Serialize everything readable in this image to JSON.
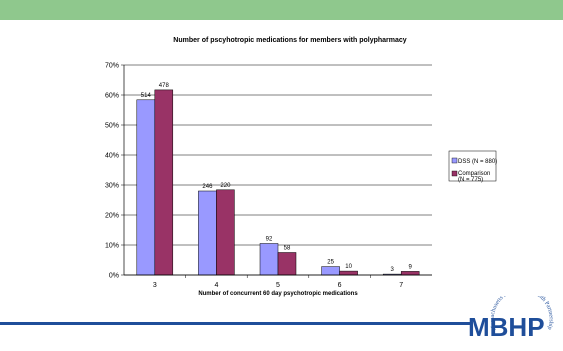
{
  "chart_data": {
    "type": "bar",
    "title": "Number of pscyhotropic medications for members with polypharmacy",
    "xlabel": "Number of concurrent 60 day psychotropic medications",
    "ylabel": "",
    "categories": [
      "3",
      "4",
      "5",
      "6",
      "7"
    ],
    "ylim": [
      0,
      70
    ],
    "yticks": [
      "0%",
      "10%",
      "20%",
      "30%",
      "40%",
      "50%",
      "60%",
      "70%"
    ],
    "grid": true,
    "legend_position": "right",
    "series": [
      {
        "name": "DSS (N = 880)",
        "color": "#9999ff",
        "values": [
          58.4,
          28.0,
          10.5,
          2.8,
          0.3
        ],
        "labels": [
          "514",
          "246",
          "92",
          "25",
          "3"
        ]
      },
      {
        "name": "Comparison (N = 775)",
        "color": "#993366",
        "values": [
          61.7,
          28.4,
          7.5,
          1.3,
          1.2
        ],
        "labels": [
          "478",
          "220",
          "58",
          "10",
          "9"
        ]
      }
    ]
  },
  "logo": {
    "text": "MBHP",
    "arc_text": "Massachusetts Behavioral Health Partnership",
    "color": "#1f4e9a"
  },
  "theme": {
    "top_bar_color": "#8fc88d",
    "footer_line_color": "#1f4e9a"
  }
}
